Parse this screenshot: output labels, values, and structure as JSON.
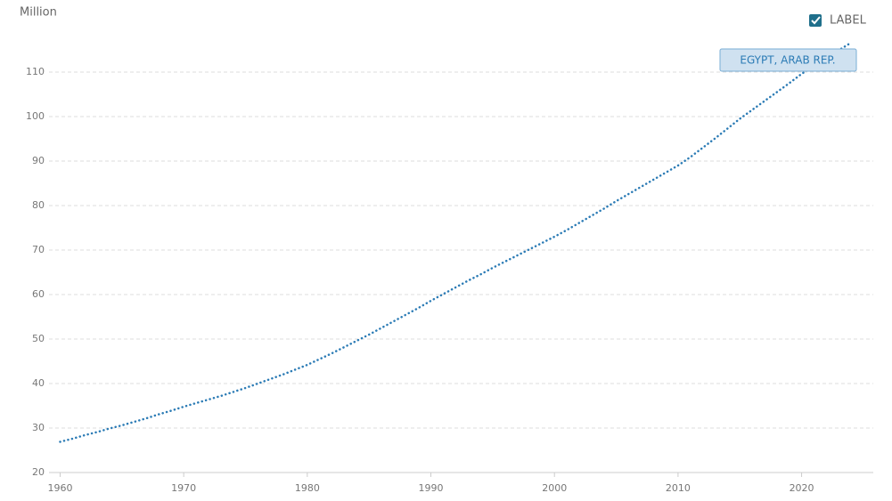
{
  "chart_data": {
    "type": "line",
    "y_axis_label": "Million",
    "label_toggle": "LABEL",
    "x": [
      1960,
      1961,
      1962,
      1963,
      1964,
      1965,
      1966,
      1967,
      1968,
      1969,
      1970,
      1971,
      1972,
      1973,
      1974,
      1975,
      1976,
      1977,
      1978,
      1979,
      1980,
      1981,
      1982,
      1983,
      1984,
      1985,
      1986,
      1987,
      1988,
      1989,
      1990,
      1991,
      1992,
      1993,
      1994,
      1995,
      1996,
      1997,
      1998,
      1999,
      2000,
      2001,
      2002,
      2003,
      2004,
      2005,
      2006,
      2007,
      2008,
      2009,
      2010,
      2011,
      2012,
      2013,
      2014,
      2015,
      2016,
      2017,
      2018,
      2019,
      2020,
      2021,
      2022,
      2023,
      2024
    ],
    "series": [
      {
        "name": "EGYPT, ARAB REP.",
        "color": "#2b7bb5",
        "values": [
          26.9,
          27.6,
          28.4,
          29.1,
          29.9,
          30.6,
          31.4,
          32.2,
          33.1,
          33.9,
          34.8,
          35.6,
          36.4,
          37.2,
          38.1,
          39.0,
          40.0,
          41.0,
          42.0,
          43.1,
          44.2,
          45.5,
          46.8,
          48.2,
          49.6,
          51.0,
          52.5,
          54.0,
          55.5,
          57.0,
          58.6,
          60.1,
          61.6,
          63.1,
          64.5,
          66.0,
          67.4,
          68.8,
          70.2,
          71.6,
          73.0,
          74.5,
          76.1,
          77.7,
          79.3,
          81.0,
          82.6,
          84.2,
          85.8,
          87.4,
          89.0,
          90.9,
          93.0,
          95.1,
          97.3,
          99.5,
          101.5,
          103.5,
          105.5,
          107.5,
          109.6,
          111.4,
          113.2,
          114.9,
          116.6
        ]
      }
    ],
    "xlim": [
      1959.1,
      2025.8
    ],
    "ylim": [
      20,
      118.2
    ],
    "xticks": [
      1960,
      1970,
      1980,
      1990,
      2000,
      2010,
      2020
    ],
    "yticks": [
      20,
      30,
      40,
      50,
      60,
      70,
      80,
      90,
      100,
      110
    ],
    "grid": true
  }
}
